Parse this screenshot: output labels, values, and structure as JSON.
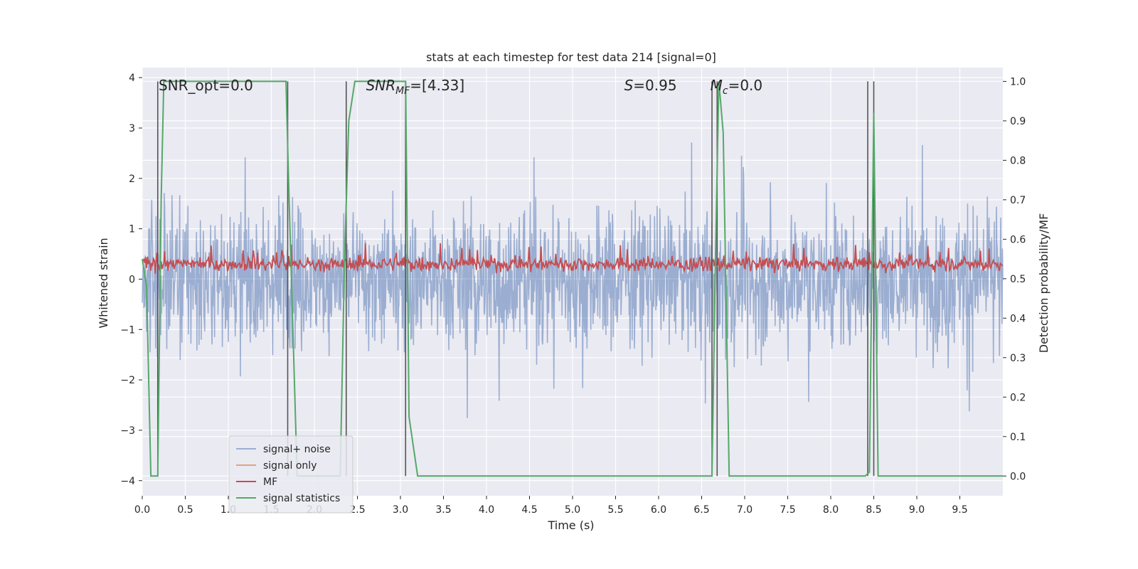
{
  "chart_data": {
    "type": "line",
    "title": "stats at each timestep for test data 214 [signal=0]",
    "xlabel": "Time (s)",
    "ylabel": "Whitened strain",
    "ylabel_right": "Detection probability/MF",
    "xlim": [
      0,
      10
    ],
    "ylim": [
      -4.3,
      4.2
    ],
    "ylim_right": [
      -0.05,
      1.035
    ],
    "x_ticks": [
      0.0,
      0.5,
      1.0,
      1.5,
      2.0,
      2.5,
      3.0,
      3.5,
      4.0,
      4.5,
      5.0,
      5.5,
      6.0,
      6.5,
      7.0,
      7.5,
      8.0,
      8.5,
      9.0,
      9.5
    ],
    "x_tick_labels": [
      "0.0",
      "0.5",
      "1.0",
      "1.5",
      "2.0",
      "2.5",
      "3.0",
      "3.5",
      "4.0",
      "4.5",
      "5.0",
      "5.5",
      "6.0",
      "6.5",
      "7.0",
      "7.5",
      "8.0",
      "8.5",
      "9.0",
      "9.5"
    ],
    "y_ticks": [
      -4,
      -3,
      -2,
      -1,
      0,
      1,
      2,
      3,
      4
    ],
    "y_tick_labels": [
      "−4",
      "−3",
      "−2",
      "−1",
      "0",
      "1",
      "2",
      "3",
      "4"
    ],
    "y_right_ticks": [
      0.0,
      0.1,
      0.2,
      0.3,
      0.4,
      0.5,
      0.6,
      0.7,
      0.8,
      0.9,
      1.0
    ],
    "y_right_tick_labels": [
      "0.0",
      "0.1",
      "0.2",
      "0.3",
      "0.4",
      "0.5",
      "0.6",
      "0.7",
      "0.8",
      "0.9",
      "1.0"
    ],
    "grid": true,
    "legend_position": "bottom-left",
    "background": "#eaeaf2",
    "annotations": [
      {
        "text": "SNR_opt=0.0",
        "x": 0.19,
        "y": 3.75
      },
      {
        "text": "=[4.33]",
        "math": "SNR",
        "sub": "MF",
        "x": 2.6,
        "y": 3.75
      },
      {
        "text": "=0.95",
        "math": "S",
        "x": 5.6,
        "y": 3.75
      },
      {
        "text": "=0.0",
        "math": "M",
        "sub": "c",
        "x": 6.6,
        "y": 3.75
      }
    ],
    "vlines": [
      0.18,
      1.69,
      2.37,
      3.06,
      6.62,
      6.68,
      8.43,
      8.5
    ],
    "series": [
      {
        "name": "signal+ noise",
        "color": "#4c72b0",
        "alpha": 0.5,
        "axis": "left",
        "generated": "noise",
        "abs_max": 3.8
      },
      {
        "name": "signal only",
        "color": "#dd8452",
        "alpha": 0.7,
        "axis": "left",
        "values": []
      },
      {
        "name": "MF",
        "color": "#c44e52",
        "axis": "left",
        "generated": "mf",
        "baseline": 0.3,
        "spread": 0.2
      },
      {
        "name": "signal statistics",
        "color": "#55a868",
        "axis": "right",
        "x": [
          0.0,
          0.05,
          0.1,
          0.18,
          0.22,
          0.25,
          1.67,
          1.7,
          1.8,
          2.3,
          2.35,
          2.4,
          2.47,
          3.06,
          3.1,
          3.2,
          6.62,
          6.66,
          6.7,
          6.75,
          6.82,
          8.4,
          8.45,
          8.5,
          8.55,
          8.6,
          10.0
        ],
        "y": [
          0.55,
          0.48,
          0.0,
          0.0,
          0.7,
          1.0,
          1.0,
          0.75,
          0.0,
          0.0,
          0.55,
          0.9,
          1.0,
          1.0,
          0.15,
          0.0,
          0.0,
          0.55,
          1.0,
          0.87,
          0.0,
          0.0,
          0.01,
          0.92,
          0.0,
          0.0,
          0.0
        ]
      }
    ]
  }
}
